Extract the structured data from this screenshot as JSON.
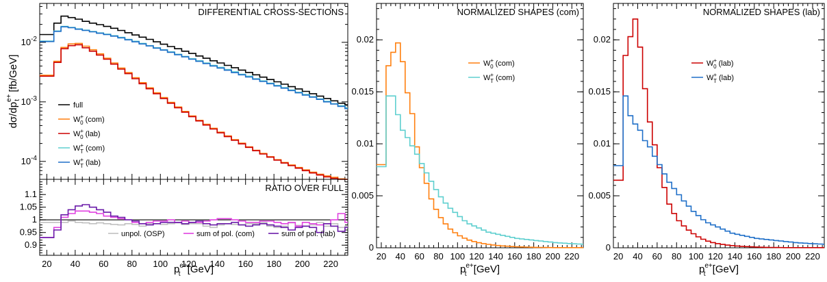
{
  "chart_data": [
    {
      "id": "top",
      "type": "line",
      "title": "DIFFERENTIAL CROSS-SECTIONS",
      "ylabel": "dσ/dp",
      "ylabel_sub": "t",
      "ylabel_sup": "e+",
      "ylabel_units": " [fb/GeV]",
      "yscale": "log",
      "ylim": [
        5e-05,
        0.045
      ],
      "xlim": [
        15,
        232
      ],
      "yticks": [
        {
          "v": 0.0001,
          "b": "10",
          "e": "-4"
        },
        {
          "v": 0.001,
          "b": "10",
          "e": "-3"
        },
        {
          "v": 0.01,
          "b": "10",
          "e": "-2"
        }
      ],
      "legend_position": "bottom-left",
      "bin_edges": [
        15,
        25,
        30,
        35,
        40,
        45,
        50,
        55,
        60,
        65,
        70,
        75,
        80,
        85,
        90,
        95,
        100,
        105,
        110,
        115,
        120,
        125,
        130,
        135,
        140,
        145,
        150,
        155,
        160,
        165,
        170,
        175,
        180,
        185,
        190,
        195,
        200,
        205,
        210,
        215,
        220,
        225,
        230,
        232
      ],
      "series": [
        {
          "name": "full",
          "base": "full",
          "sub": "",
          "sup": "",
          "suffix": "",
          "color": "#000000",
          "values": [
            0.0135,
            0.021,
            0.0275,
            0.026,
            0.0245,
            0.0225,
            0.021,
            0.0198,
            0.0185,
            0.0172,
            0.0158,
            0.0145,
            0.0133,
            0.0122,
            0.0112,
            0.0102,
            0.0093,
            0.0085,
            0.0078,
            0.0071,
            0.0065,
            0.0059,
            0.0054,
            0.0049,
            0.0045,
            0.0041,
            0.00375,
            0.00342,
            0.00312,
            0.00285,
            0.0026,
            0.00237,
            0.00217,
            0.00198,
            0.0018,
            0.00165,
            0.0015,
            0.00137,
            0.00125,
            0.00114,
            0.00104,
            0.00095,
            0.00088
          ]
        },
        {
          "name": "W0+ (com)",
          "base": "W",
          "sub": "0",
          "sup": "+",
          "suffix": " (com)",
          "color": "#ff7f0e",
          "values": [
            0.0028,
            0.0048,
            0.0082,
            0.0094,
            0.0096,
            0.0086,
            0.0075,
            0.0064,
            0.0054,
            0.0045,
            0.0037,
            0.0031,
            0.00255,
            0.0021,
            0.00172,
            0.00142,
            0.00118,
            0.00098,
            0.00082,
            0.00069,
            0.00058,
            0.00049,
            0.00042,
            0.00036,
            0.00031,
            0.000268,
            0.000232,
            0.000202,
            0.000176,
            0.000154,
            0.000136,
            0.00012,
            0.000107,
            9.6e-05,
            8.7e-05,
            7.9e-05,
            7.2e-05,
            6.6e-05,
            6.1e-05,
            5.7e-05,
            5.4e-05,
            5.1e-05,
            4.9e-05
          ]
        },
        {
          "name": "W0+ (lab)",
          "base": "W",
          "sub": "0",
          "sup": "+",
          "suffix": " (lab)",
          "color": "#cc0000",
          "values": [
            0.0027,
            0.0046,
            0.0078,
            0.0088,
            0.0091,
            0.0081,
            0.0071,
            0.0061,
            0.0052,
            0.0043,
            0.00355,
            0.00298,
            0.00245,
            0.00202,
            0.00166,
            0.00137,
            0.00114,
            0.00095,
            0.000795,
            0.00067,
            0.000565,
            0.000478,
            0.000408,
            0.00035,
            0.000302,
            0.000261,
            0.000226,
            0.000197,
            0.000172,
            0.000151,
            0.000133,
            0.000118,
            0.000105,
            9.4e-05,
            8.5e-05,
            7.7e-05,
            7e-05,
            6.4e-05,
            5.9e-05,
            5.5e-05,
            5.2e-05,
            4.9e-05,
            4.7e-05
          ]
        },
        {
          "name": "WT+ (com)",
          "base": "W",
          "sub": "T",
          "sup": "+",
          "suffix": " (com)",
          "color": "#5ecfcf",
          "values": [
            0.0105,
            0.0155,
            0.0185,
            0.0178,
            0.0168,
            0.016,
            0.0152,
            0.0144,
            0.0137,
            0.0129,
            0.0121,
            0.0112,
            0.0104,
            0.0096,
            0.0088,
            0.0081,
            0.0075,
            0.0069,
            0.0063,
            0.0058,
            0.0053,
            0.0049,
            0.0045,
            0.0041,
            0.0038,
            0.0035,
            0.0032,
            0.0029,
            0.0027,
            0.00245,
            0.00225,
            0.00206,
            0.00189,
            0.00173,
            0.00158,
            0.00145,
            0.00133,
            0.00122,
            0.00112,
            0.00102,
            0.00093,
            0.00086,
            0.00079
          ]
        },
        {
          "name": "WT+ (lab)",
          "base": "W",
          "sub": "T",
          "sup": "+",
          "suffix": " (lab)",
          "color": "#1f6fc8",
          "values": [
            0.0103,
            0.0153,
            0.0182,
            0.0176,
            0.0166,
            0.0158,
            0.015,
            0.0142,
            0.0135,
            0.0127,
            0.0119,
            0.011,
            0.0102,
            0.0094,
            0.0087,
            0.008,
            0.0074,
            0.0068,
            0.0062,
            0.0057,
            0.0052,
            0.0048,
            0.0044,
            0.004,
            0.0037,
            0.0034,
            0.0031,
            0.00285,
            0.00262,
            0.0024,
            0.0022,
            0.00202,
            0.00185,
            0.0017,
            0.00155,
            0.00142,
            0.0013,
            0.0012,
            0.0011,
            0.001,
            0.00092,
            0.00084,
            0.00077
          ]
        }
      ],
      "xticklabels": []
    },
    {
      "id": "ratio",
      "type": "line",
      "title": "RATIO OVER FULL",
      "ylim": [
        0.86,
        1.16
      ],
      "xlim": [
        15,
        232
      ],
      "yticks": [
        {
          "v": 0.9,
          "t": "0.9"
        },
        {
          "v": 0.95,
          "t": "0.95"
        },
        {
          "v": 1,
          "t": "1"
        },
        {
          "v": 1.05,
          "t": "1.05"
        },
        {
          "v": 1.1,
          "t": "1.1"
        }
      ],
      "reference_line": 1,
      "legend_position": "bottom-right",
      "bin_edges": [
        15,
        25,
        30,
        35,
        40,
        45,
        50,
        55,
        60,
        65,
        70,
        75,
        80,
        85,
        90,
        95,
        100,
        105,
        110,
        115,
        120,
        125,
        130,
        135,
        140,
        145,
        150,
        155,
        160,
        165,
        170,
        175,
        180,
        185,
        190,
        195,
        200,
        205,
        210,
        215,
        220,
        225,
        230,
        232
      ],
      "series": [
        {
          "name": "unpol. (OSP)",
          "color": "#c0c0c0",
          "values": [
            0.99,
            0.99,
            0.99,
            0.995,
            0.99,
            0.988,
            0.985,
            0.988,
            0.985,
            0.982,
            0.98,
            0.985,
            0.982,
            0.975,
            0.985,
            0.985,
            0.982,
            0.985,
            0.988,
            0.982,
            0.985,
            0.985,
            0.975,
            0.97,
            0.98,
            0.985,
            0.982,
            0.98,
            0.985,
            0.985,
            0.99,
            0.975,
            0.97,
            0.975,
            0.988,
            0.978,
            0.975,
            0.98,
            0.99,
            0.975,
            0.985,
            0.97,
            0.975
          ]
        },
        {
          "name": "sum of pol. (com)",
          "color": "#e040e0",
          "values": [
            0.93,
            0.97,
            1.01,
            1.025,
            1.035,
            1.035,
            1.03,
            1.025,
            1.015,
            1.01,
            1.005,
            1.0,
            0.99,
            0.985,
            0.99,
            0.995,
            0.995,
            1.0,
            0.99,
            0.995,
            0.99,
            0.99,
            0.995,
            1.0,
            1.005,
            1.005,
            1.0,
            0.995,
            0.99,
            0.99,
            0.995,
            0.995,
            0.99,
            0.985,
            0.99,
            0.975,
            0.99,
            0.985,
            0.98,
            0.985,
            1.0,
            1.025,
            0.99
          ]
        },
        {
          "name": "sum of pol. (lab)",
          "color": "#6a1aa8",
          "values": [
            0.93,
            0.96,
            1.02,
            1.04,
            1.055,
            1.06,
            1.05,
            1.04,
            1.03,
            1.015,
            1.01,
            1.0,
            0.995,
            0.985,
            0.98,
            0.985,
            0.99,
            0.99,
            0.99,
            0.985,
            0.99,
            0.995,
            0.985,
            0.98,
            0.985,
            0.985,
            0.99,
            0.98,
            0.975,
            0.98,
            0.985,
            0.98,
            0.975,
            0.97,
            0.96,
            0.97,
            0.975,
            0.97,
            0.95,
            0.985,
            0.975,
            0.955,
            0.97
          ]
        }
      ],
      "xticklabels": [
        "20",
        "40",
        "60",
        "80",
        "100",
        "120",
        "140",
        "160",
        "180",
        "200",
        "220"
      ]
    },
    {
      "id": "mid",
      "type": "line",
      "title": "NORMALIZED SHAPES (com)",
      "ylim": [
        0,
        0.0235
      ],
      "xlim": [
        15,
        232
      ],
      "yticks": [
        {
          "v": 0,
          "t": "0"
        },
        {
          "v": 0.005,
          "t": "0.005"
        },
        {
          "v": 0.01,
          "t": "0.01"
        },
        {
          "v": 0.015,
          "t": "0.015"
        },
        {
          "v": 0.02,
          "t": "0.02"
        }
      ],
      "legend_position": "top-right",
      "bin_edges": [
        15,
        25,
        30,
        35,
        40,
        45,
        50,
        55,
        60,
        65,
        70,
        75,
        80,
        85,
        90,
        95,
        100,
        105,
        110,
        115,
        120,
        125,
        130,
        135,
        140,
        145,
        150,
        155,
        160,
        165,
        170,
        175,
        180,
        185,
        190,
        195,
        200,
        205,
        210,
        215,
        220,
        225,
        230,
        232
      ],
      "series": [
        {
          "name": "W0+ (com)",
          "base": "W",
          "sub": "0",
          "sup": "+",
          "suffix": " (com)",
          "color": "#ff7f0e",
          "values": [
            0.008,
            0.0175,
            0.0188,
            0.0197,
            0.0179,
            0.0149,
            0.0129,
            0.0097,
            0.0077,
            0.0062,
            0.0047,
            0.0037,
            0.0029,
            0.0023,
            0.0018,
            0.00145,
            0.00115,
            0.00092,
            0.00074,
            0.0006,
            0.00049,
            0.0004,
            0.00033,
            0.00027,
            0.00022,
            0.00018,
            0.00015,
            0.00012,
            0.0001,
            8e-05,
            6.5e-05,
            5e-05,
            4e-05,
            3e-05,
            2.5e-05,
            2e-05,
            1.5e-05,
            1e-05,
            1e-05,
            1e-05,
            1e-05,
            1e-05,
            1e-05
          ]
        },
        {
          "name": "WT+ (com)",
          "base": "W",
          "sub": "T",
          "sup": "+",
          "suffix": " (com)",
          "color": "#5ecfcf",
          "values": [
            0.0078,
            0.0146,
            0.0146,
            0.0128,
            0.0113,
            0.0106,
            0.0098,
            0.009,
            0.0081,
            0.0072,
            0.0064,
            0.0056,
            0.0049,
            0.0043,
            0.0038,
            0.0034,
            0.003,
            0.0026,
            0.0023,
            0.0021,
            0.0019,
            0.0017,
            0.0015,
            0.0014,
            0.0013,
            0.0012,
            0.0011,
            0.001,
            0.0009,
            0.00085,
            0.0008,
            0.00075,
            0.0007,
            0.00065,
            0.0006,
            0.00055,
            0.0005,
            0.00047,
            0.00044,
            0.00041,
            0.00038,
            0.00036,
            0.00034
          ]
        }
      ],
      "xticklabels": [
        "20",
        "40",
        "60",
        "80",
        "100",
        "120",
        "140",
        "160",
        "180",
        "200",
        "220"
      ]
    },
    {
      "id": "right",
      "type": "line",
      "title": "NORMALIZED SHAPES (lab)",
      "ylim": [
        0,
        0.0235
      ],
      "xlim": [
        15,
        232
      ],
      "yticks": [
        {
          "v": 0,
          "t": "0"
        },
        {
          "v": 0.005,
          "t": "0.005"
        },
        {
          "v": 0.01,
          "t": "0.01"
        },
        {
          "v": 0.015,
          "t": "0.015"
        },
        {
          "v": 0.02,
          "t": "0.02"
        }
      ],
      "legend_position": "top-right",
      "bin_edges": [
        15,
        25,
        30,
        35,
        40,
        45,
        50,
        55,
        60,
        65,
        70,
        75,
        80,
        85,
        90,
        95,
        100,
        105,
        110,
        115,
        120,
        125,
        130,
        135,
        140,
        145,
        150,
        155,
        160,
        165,
        170,
        175,
        180,
        185,
        190,
        195,
        200,
        205,
        210,
        215,
        220,
        225,
        230,
        232
      ],
      "series": [
        {
          "name": "W0+ (lab)",
          "base": "W",
          "sub": "0",
          "sup": "+",
          "suffix": " (lab)",
          "color": "#cc0000",
          "values": [
            0.0065,
            0.0185,
            0.0203,
            0.022,
            0.0193,
            0.0153,
            0.0121,
            0.0099,
            0.0077,
            0.0058,
            0.0042,
            0.0033,
            0.0026,
            0.0021,
            0.0017,
            0.00135,
            0.00105,
            0.00082,
            0.00064,
            0.0005,
            0.0004,
            0.00032,
            0.00026,
            0.00021,
            0.00017,
            0.00014,
            0.00011,
            9e-05,
            7e-05,
            5.5e-05,
            4e-05,
            3e-05,
            2.5e-05,
            2e-05,
            1.5e-05,
            1e-05,
            1e-05,
            1e-05,
            1e-05,
            1e-05,
            1e-05,
            1e-05,
            1e-05
          ]
        },
        {
          "name": "WT+ (lab)",
          "base": "W",
          "sub": "T",
          "sup": "+",
          "suffix": " (lab)",
          "color": "#1f6fc8",
          "values": [
            0.0079,
            0.0146,
            0.0127,
            0.0119,
            0.0113,
            0.0103,
            0.0097,
            0.0088,
            0.008,
            0.0071,
            0.0063,
            0.0057,
            0.0051,
            0.0045,
            0.004,
            0.0035,
            0.0031,
            0.0027,
            0.0024,
            0.0022,
            0.002,
            0.0018,
            0.0016,
            0.0014,
            0.0013,
            0.0012,
            0.0011,
            0.001,
            0.0009,
            0.00085,
            0.0008,
            0.00075,
            0.0007,
            0.00065,
            0.0006,
            0.00055,
            0.0005,
            0.00047,
            0.00044,
            0.00041,
            0.00038,
            0.00036,
            0.00034
          ]
        }
      ],
      "xticklabels": [
        "20",
        "40",
        "60",
        "80",
        "100",
        "120",
        "140",
        "160",
        "180",
        "200",
        "220"
      ]
    }
  ],
  "xlabel": {
    "base": "p",
    "sub": "t",
    "sup": "e+",
    "suffix": " [GeV]"
  }
}
